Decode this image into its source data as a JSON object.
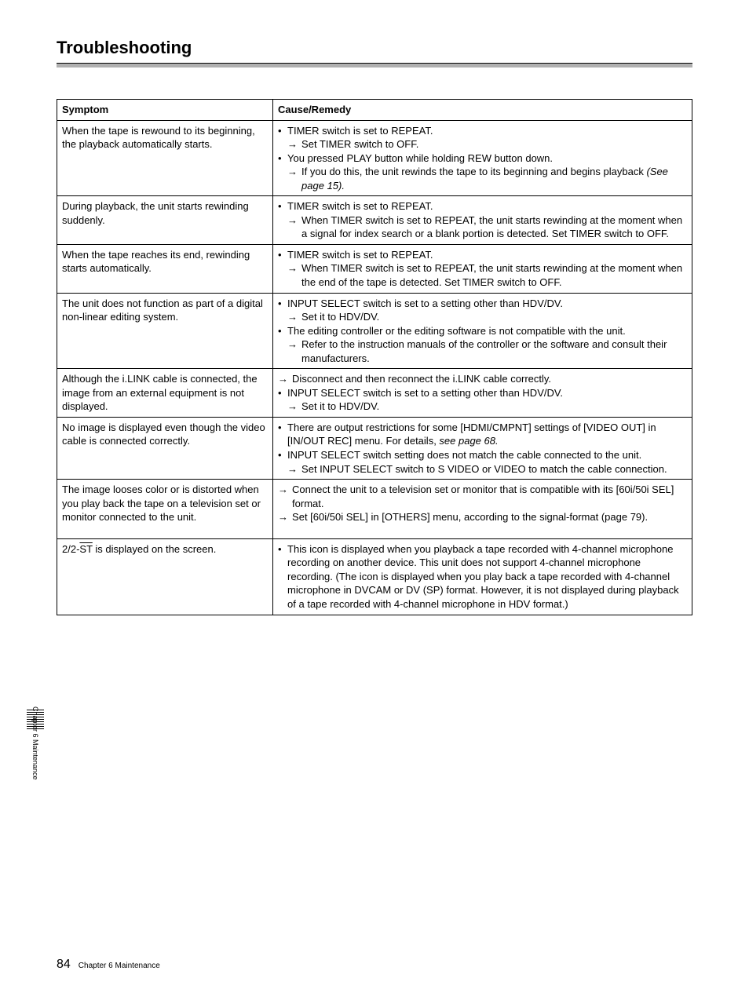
{
  "title": "Troubleshooting",
  "columns": {
    "symptom": "Symptom",
    "remedy": "Cause/Remedy"
  },
  "rows": [
    {
      "symptom": "When the tape is rewound to its beginning, the playback automatically starts.",
      "remedy": [
        {
          "type": "bullet",
          "text": "TIMER switch is set to REPEAT."
        },
        {
          "type": "arrow",
          "text": "Set TIMER switch to OFF."
        },
        {
          "type": "bullet",
          "text": "You pressed PLAY button while holding REW button down."
        },
        {
          "type": "arrow",
          "text": "If you do this, the unit rewinds the tape to its beginning and begins playback ",
          "trail_italic": "(See page 15)."
        }
      ]
    },
    {
      "symptom": "During playback, the unit starts rewinding suddenly.",
      "remedy": [
        {
          "type": "bullet",
          "text": "TIMER switch is set to REPEAT."
        },
        {
          "type": "arrow",
          "text": "When TIMER switch is set to REPEAT, the unit starts rewinding at the moment when a signal for index search or a blank portion is detected. Set TIMER switch to OFF."
        }
      ]
    },
    {
      "symptom": "When the tape reaches its end, rewinding starts automatically.",
      "remedy": [
        {
          "type": "bullet",
          "text": "TIMER switch is set to REPEAT."
        },
        {
          "type": "arrow",
          "text": "When TIMER switch is set to REPEAT, the unit starts rewinding at the moment when the end of the tape is detected. Set TIMER switch to OFF."
        }
      ]
    },
    {
      "symptom": "The unit does not function as part of a digital non-linear editing system.",
      "remedy": [
        {
          "type": "bullet",
          "text": "INPUT SELECT switch is set to a setting other than HDV/DV."
        },
        {
          "type": "arrow",
          "text": "Set it to HDV/DV."
        },
        {
          "type": "bullet",
          "text": "The editing controller or the editing software is not compatible with the unit."
        },
        {
          "type": "arrow",
          "text": "Refer to the instruction manuals of the controller or the software and consult their manufacturers."
        }
      ]
    },
    {
      "symptom": "Although the i.LINK cable is connected, the image from an external equipment is not displayed.",
      "remedy": [
        {
          "type": "arrow_nopad",
          "text": "Disconnect and then reconnect the i.LINK cable correctly."
        },
        {
          "type": "bullet",
          "text": "INPUT SELECT switch is set to a setting other than HDV/DV."
        },
        {
          "type": "arrow",
          "text": "Set it to HDV/DV."
        }
      ]
    },
    {
      "symptom": "No image is displayed even though the video cable is connected correctly.",
      "remedy": [
        {
          "type": "bullet",
          "text": "There are output restrictions for some [HDMI/CMPNT] settings of [VIDEO OUT] in [IN/OUT REC] menu. For details, ",
          "trail_italic": "see page 68."
        },
        {
          "type": "bullet",
          "text": "INPUT SELECT switch setting does not match the cable connected to the unit."
        },
        {
          "type": "arrow",
          "text": "Set INPUT SELECT switch to S VIDEO or VIDEO to match the cable connection."
        }
      ]
    },
    {
      "symptom": "The image looses color or is distorted when you play back the tape on a television set or monitor connected to the unit.",
      "remedy": [
        {
          "type": "arrow_nopad",
          "text": "Connect the unit to a television set or monitor that is compatible with its [60i/50i SEL] format."
        },
        {
          "type": "arrow_nopad",
          "text": "Set [60i/50i SEL] in [OTHERS] menu, according to the signal-format (page 79)."
        }
      ],
      "extra_pad": true
    },
    {
      "symptom_html": true,
      "symptom": "2/2-ST is displayed on the screen.",
      "remedy": [
        {
          "type": "bullet",
          "text": "This icon is displayed when you playback a tape recorded with 4-channel microphone recording on another device. This unit does not support 4-channel microphone recording. (The icon is displayed when you play back a tape recorded with 4-channel microphone in DVCAM or DV (SP) format. However, it is not displayed during playback of a tape recorded with 4-channel microphone in HDV format.)"
        }
      ]
    }
  ],
  "sidebar": "Chapter 6   Maintenance",
  "footer": {
    "page": "84",
    "text": "Chapter 6   Maintenance"
  },
  "colors": {
    "rule": "#b0b0b0",
    "text": "#000000",
    "bg": "#ffffff"
  }
}
